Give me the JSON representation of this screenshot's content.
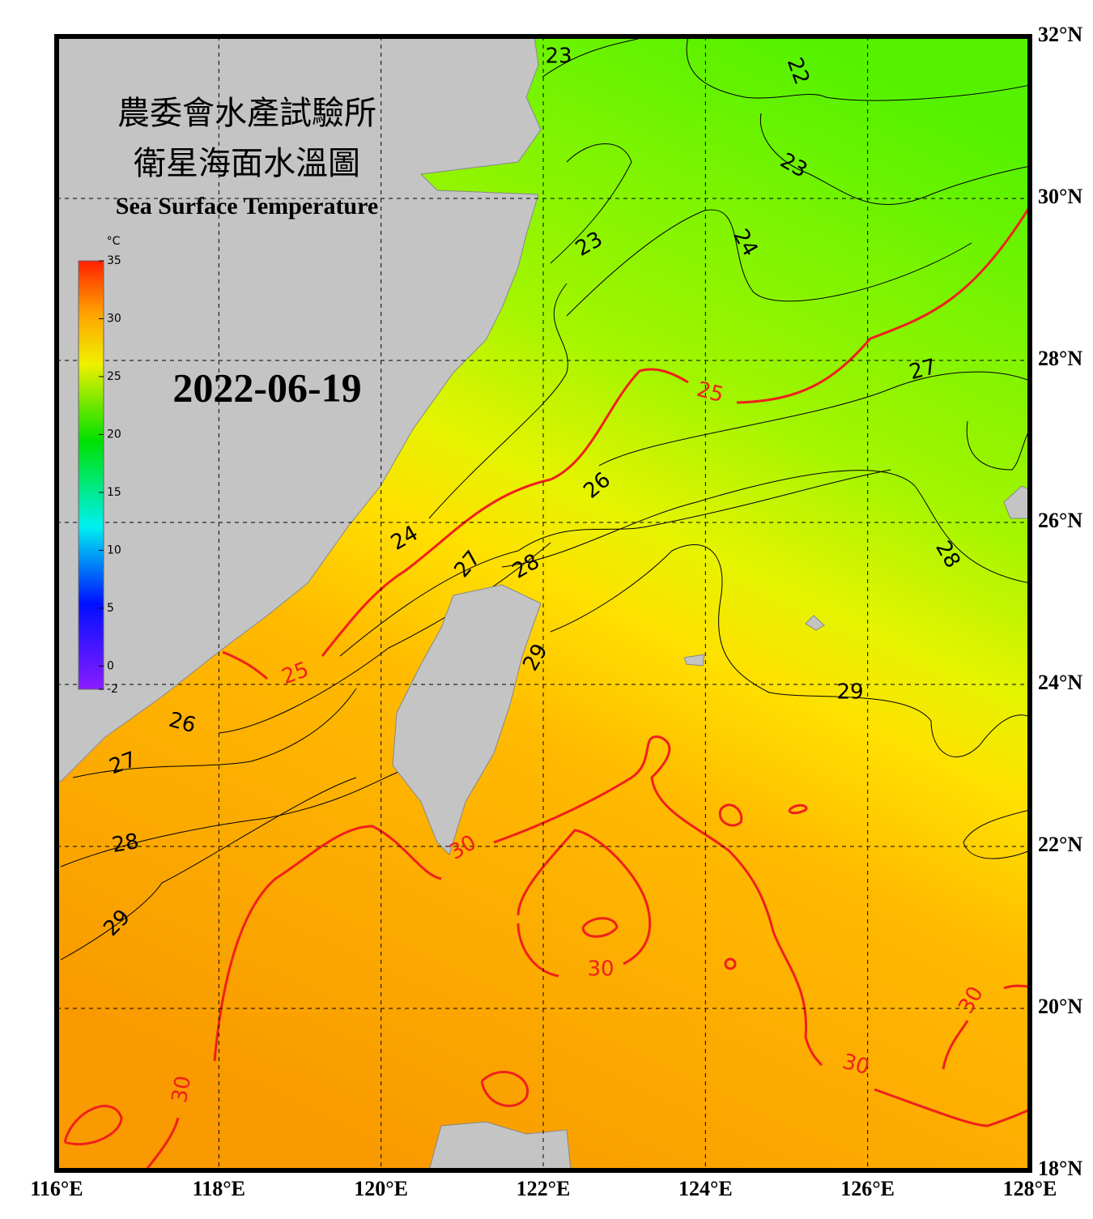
{
  "map": {
    "title_zh_1": "農委會水產試驗所",
    "title_zh_2": "衛星海面水溫圖",
    "title_en": "Sea Surface Temperature",
    "date": "2022-06-19",
    "colorbar": {
      "unit": "°C",
      "ticks": [
        -2,
        0,
        5,
        10,
        15,
        20,
        25,
        30,
        35
      ]
    },
    "lon_ticks": [
      {
        "value": 116,
        "label": "116°E"
      },
      {
        "value": 118,
        "label": "118°E"
      },
      {
        "value": 120,
        "label": "120°E"
      },
      {
        "value": 122,
        "label": "122°E"
      },
      {
        "value": 124,
        "label": "124°E"
      },
      {
        "value": 126,
        "label": "126°E"
      },
      {
        "value": 128,
        "label": "128°E"
      }
    ],
    "lat_ticks": [
      {
        "value": 18,
        "label": "18°N"
      },
      {
        "value": 20,
        "label": "20°N"
      },
      {
        "value": 22,
        "label": "22°N"
      },
      {
        "value": 24,
        "label": "24°N"
      },
      {
        "value": 26,
        "label": "26°N"
      },
      {
        "value": 28,
        "label": "28°N"
      },
      {
        "value": 30,
        "label": "30°N"
      },
      {
        "value": 32,
        "label": "32°N"
      }
    ],
    "contour_labels": [
      23,
      22,
      23,
      23,
      24,
      27,
      25,
      26,
      24,
      28,
      27,
      28,
      25,
      29,
      29,
      26,
      27,
      28,
      29,
      30,
      30,
      30,
      30,
      30
    ]
  }
}
